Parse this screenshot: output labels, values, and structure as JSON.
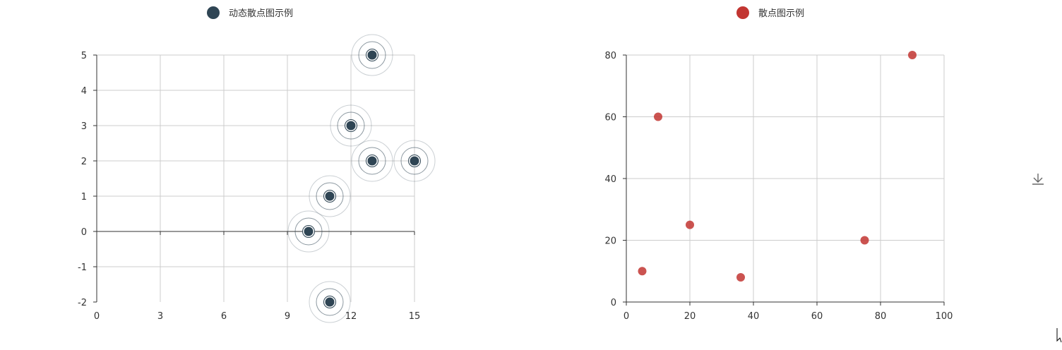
{
  "toolbox": {
    "download_icon": "download-icon"
  },
  "colors": {
    "dynamic_series": "#2f4554",
    "static_series": "#c23531",
    "grid": "#cccccc",
    "axis": "#333333",
    "text": "#333333"
  },
  "chart_data": [
    {
      "type": "scatter",
      "effect": "ripple",
      "legend": [
        "动态散点图示例"
      ],
      "legend_position": "top-center",
      "grid": true,
      "xlim": [
        0,
        15
      ],
      "xticks": [
        0,
        3,
        6,
        9,
        12,
        15
      ],
      "ylim": [
        -2,
        5
      ],
      "yticks": [
        -2,
        -1,
        0,
        1,
        2,
        3,
        4,
        5
      ],
      "series": [
        {
          "name": "动态散点图示例",
          "points": [
            [
              13,
              5
            ],
            [
              12,
              3
            ],
            [
              13,
              2
            ],
            [
              15,
              2
            ],
            [
              11,
              1
            ],
            [
              10,
              0
            ],
            [
              11,
              -2
            ]
          ]
        }
      ]
    },
    {
      "type": "scatter",
      "legend": [
        "散点图示例"
      ],
      "legend_position": "top-center",
      "grid": true,
      "xlim": [
        0,
        100
      ],
      "xticks": [
        0,
        20,
        40,
        60,
        80,
        100
      ],
      "ylim": [
        0,
        80
      ],
      "yticks": [
        0,
        20,
        40,
        60,
        80
      ],
      "series": [
        {
          "name": "散点图示例",
          "points": [
            [
              90,
              80
            ],
            [
              10,
              60
            ],
            [
              20,
              25
            ],
            [
              5,
              10
            ],
            [
              36,
              8
            ],
            [
              75,
              20
            ]
          ]
        }
      ]
    }
  ]
}
